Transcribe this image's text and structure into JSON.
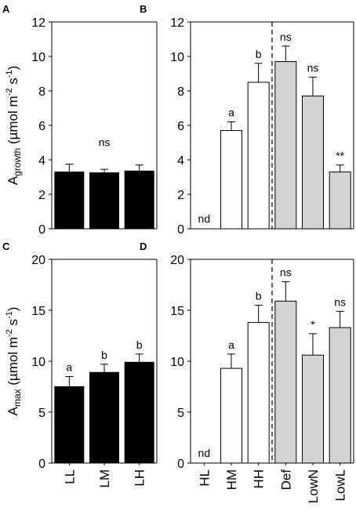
{
  "chart_data": [
    {
      "panel": "A",
      "type": "bar",
      "ylabel": {
        "main": "A",
        "sub": "growth",
        "unit_pre": " (µmol m",
        "sup1": "-2",
        "unit_mid": " s",
        "sup2": "-1",
        "unit_post": ")"
      },
      "ylim": [
        0,
        12
      ],
      "yticks": [
        0,
        2,
        4,
        6,
        8,
        10,
        12
      ],
      "categories": [
        "",
        "",
        ""
      ],
      "values": [
        3.3,
        3.25,
        3.35
      ],
      "errors": [
        0.45,
        0.2,
        0.35
      ],
      "colors": [
        "#000000",
        "#000000",
        "#000000"
      ],
      "labels": [
        "",
        "",
        ""
      ],
      "group_label": "ns",
      "group_label_y": 4.8
    },
    {
      "panel": "B",
      "type": "bar",
      "ylim": [
        0,
        12
      ],
      "yticks": [
        0,
        2,
        4,
        6,
        8,
        10,
        12
      ],
      "categories": [
        "",
        "",
        "",
        "",
        "",
        ""
      ],
      "values": [
        0,
        5.7,
        8.5,
        9.7,
        7.7,
        3.3
      ],
      "errors": [
        0,
        0.5,
        1.1,
        0.9,
        1.1,
        0.4
      ],
      "colors": [
        "#ffffff",
        "#ffffff",
        "#ffffff",
        "#d3d3d3",
        "#d3d3d3",
        "#d3d3d3"
      ],
      "labels": [
        "nd",
        "a",
        "b",
        "ns",
        "ns",
        "**"
      ],
      "divider_after": 3
    },
    {
      "panel": "C",
      "type": "bar",
      "ylabel": {
        "main": "A",
        "sub": "max",
        "unit_pre": " (µmol m",
        "sup1": "-2",
        "unit_mid": " s",
        "sup2": "-1",
        "unit_post": ")"
      },
      "ylim": [
        0,
        20
      ],
      "yticks": [
        0,
        5,
        10,
        15,
        20
      ],
      "categories": [
        "LL",
        "LM",
        "LH"
      ],
      "values": [
        7.5,
        8.9,
        9.9
      ],
      "errors": [
        1.0,
        0.8,
        0.8
      ],
      "colors": [
        "#000000",
        "#000000",
        "#000000"
      ],
      "labels": [
        "a",
        "b",
        "b"
      ]
    },
    {
      "panel": "D",
      "type": "bar",
      "ylim": [
        0,
        20
      ],
      "yticks": [
        0,
        5,
        10,
        15,
        20
      ],
      "categories": [
        "HL",
        "HM",
        "HH",
        "Def",
        "LowN",
        "LowL"
      ],
      "values": [
        0,
        9.3,
        13.8,
        15.9,
        10.6,
        13.3
      ],
      "errors": [
        0,
        1.4,
        1.7,
        1.9,
        2.1,
        1.6
      ],
      "colors": [
        "#ffffff",
        "#ffffff",
        "#ffffff",
        "#d3d3d3",
        "#d3d3d3",
        "#d3d3d3"
      ],
      "labels": [
        "nd",
        "a",
        "b",
        "ns",
        "*",
        "ns"
      ],
      "divider_after": 3
    }
  ]
}
